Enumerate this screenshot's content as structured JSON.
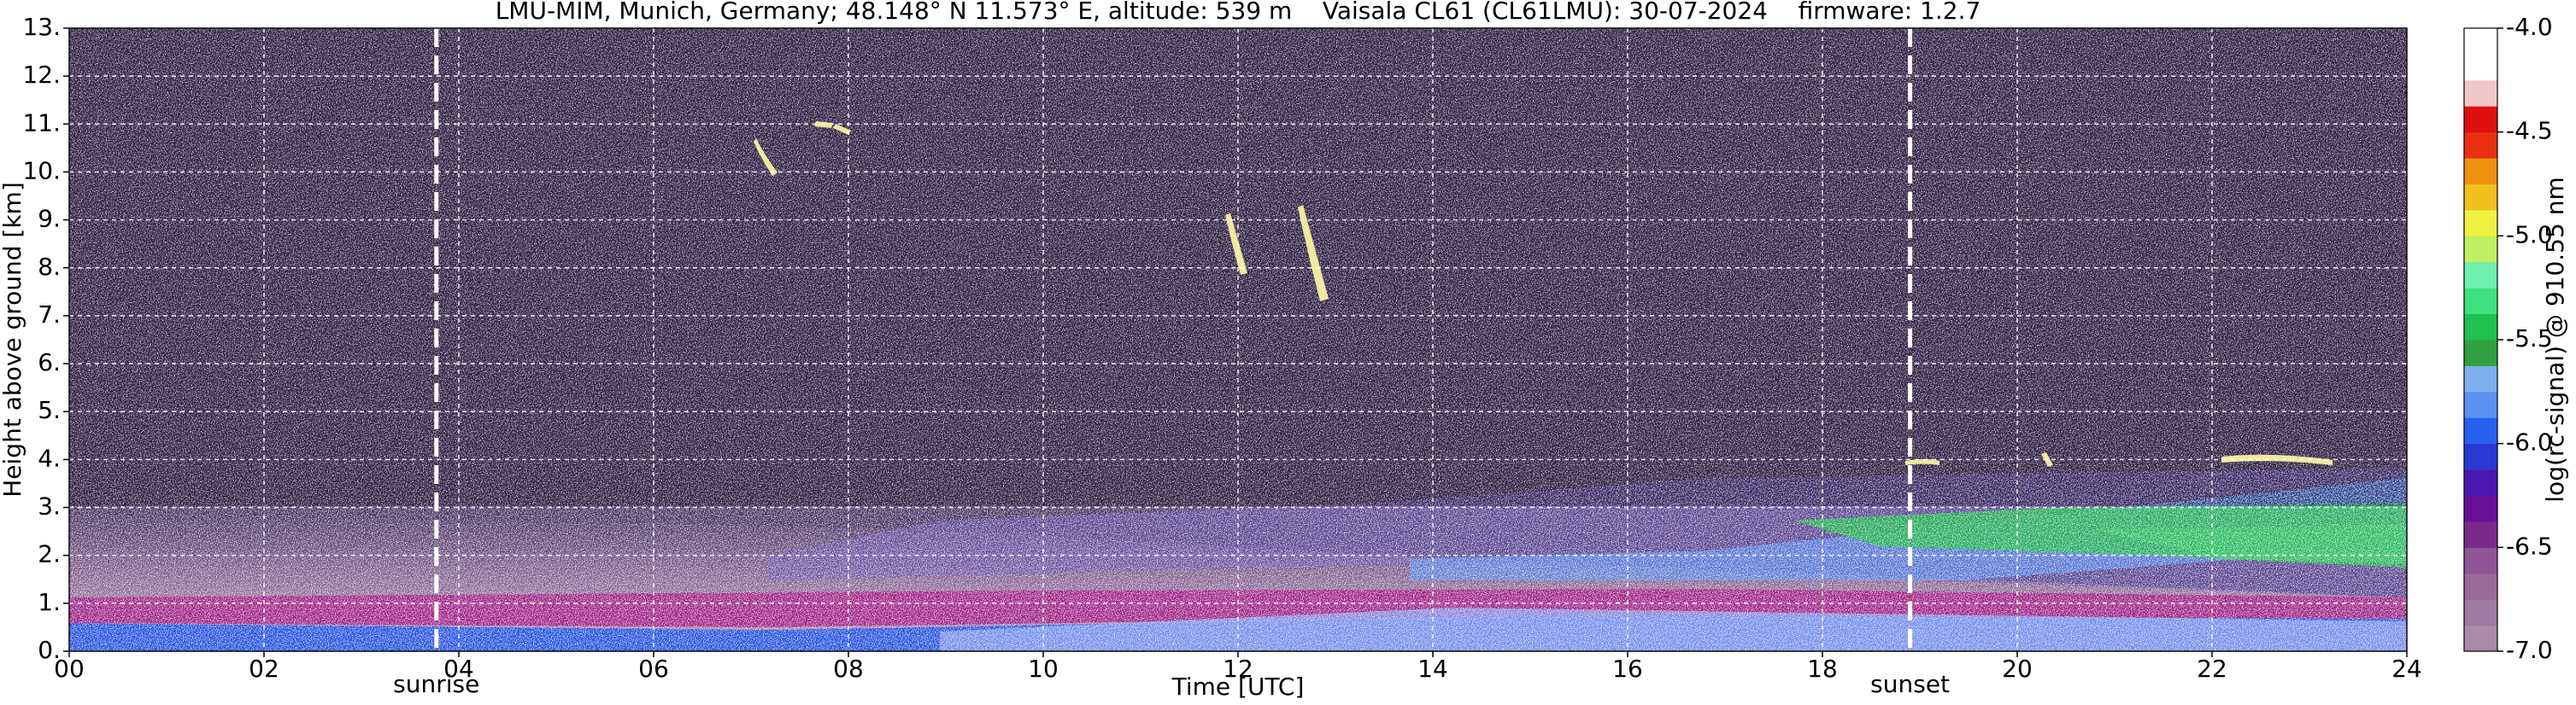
{
  "chart_data": {
    "type": "heatmap",
    "title": "LMU-MIM, Munich, Germany; 48.148° N 11.573° E, altitude: 539 m    Vaisala CL61 (CL61LMU): 30-07-2024    firmware: 1.2.7",
    "x_label": "Time [UTC]",
    "y_label": "Height above ground [km]",
    "xlim": [
      0,
      24
    ],
    "xticks": [
      {
        "value": 0,
        "label": "00"
      },
      {
        "value": 2,
        "label": "02"
      },
      {
        "value": 4,
        "label": "04"
      },
      {
        "value": 6,
        "label": "06"
      },
      {
        "value": 8,
        "label": "08"
      },
      10,
      12,
      14,
      16,
      18,
      20,
      22,
      24
    ],
    "ylim": [
      0,
      13
    ],
    "yticks": [
      {
        "value": 0,
        "label": "0."
      },
      {
        "value": 1,
        "label": "1."
      },
      {
        "value": 2,
        "label": "2."
      },
      {
        "value": 3,
        "label": "3."
      },
      {
        "value": 4,
        "label": "4."
      },
      {
        "value": 5,
        "label": "5."
      },
      {
        "value": 6,
        "label": "6."
      },
      {
        "value": 7,
        "label": "7."
      },
      {
        "value": 8,
        "label": "8."
      },
      {
        "value": 9,
        "label": "9."
      },
      {
        "value": 10,
        "label": "10."
      },
      {
        "value": 11,
        "label": "11."
      },
      {
        "value": 12,
        "label": "12."
      },
      {
        "value": 13,
        "label": "13."
      }
    ],
    "grid": true,
    "colorbar": {
      "label": "log(rc-signal) @ 910.55 nm",
      "lim": [
        -7,
        -4
      ],
      "ticks": [
        {
          "value": -4,
          "label": "-4.0"
        },
        -4.5,
        {
          "value": -5,
          "label": "-5.0"
        },
        -5.5,
        {
          "value": -6,
          "label": "-6.0"
        },
        -6.5,
        {
          "value": -7,
          "label": "-7.0"
        }
      ],
      "colors": [
        "#a98aa8",
        "#a07aa0",
        "#9a6a9a",
        "#8e5496",
        "#7a2a8a",
        "#6a1096",
        "#4a18b0",
        "#2838d0",
        "#2860f0",
        "#5a90f0",
        "#80b0f0",
        "#30a040",
        "#20c050",
        "#40e080",
        "#70f0b0",
        "#c0f060",
        "#f0f040",
        "#f0c020",
        "#f09010",
        "#e83010",
        "#e01010",
        "#f0c8c8",
        "#ffffff",
        "#ffffff"
      ]
    },
    "annotations": [
      {
        "x": 3.77,
        "label": "sunrise"
      },
      {
        "x": 18.9,
        "label": "sunset"
      }
    ]
  }
}
